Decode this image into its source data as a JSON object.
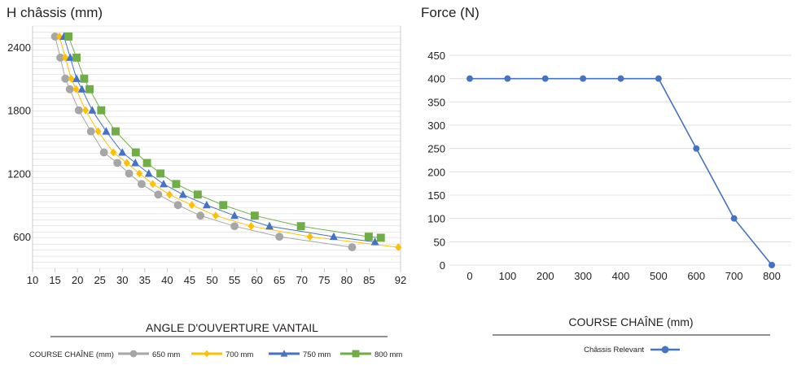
{
  "chart_data": [
    {
      "type": "scatter",
      "title": "H châssis (mm)",
      "xlabel": "ANGLE D'OUVERTURE VANTAIL",
      "ylabel": "",
      "xlim": [
        10,
        92
      ],
      "ylim": [
        300,
        2600
      ],
      "x_ticks": [
        "10",
        "15",
        "20",
        "25",
        "30",
        "35",
        "40",
        "45",
        "50",
        "55",
        "60",
        "65",
        "70",
        "75",
        "80",
        "85",
        "92"
      ],
      "y_ticks": [
        "2400",
        "1800",
        "1200",
        "600"
      ],
      "grid": true,
      "legend_title": "COURSE CHAÎNE (mm)",
      "legend_position": "bottom",
      "series": [
        {
          "name": "650 mm",
          "color": "#a6a6a6",
          "marker": "circle",
          "points": [
            [
              15.0,
              2500
            ],
            [
              16.2,
              2300
            ],
            [
              17.3,
              2100
            ],
            [
              18.3,
              2000
            ],
            [
              20.3,
              1800
            ],
            [
              23.0,
              1600
            ],
            [
              25.9,
              1400
            ],
            [
              28.9,
              1300
            ],
            [
              31.5,
              1200
            ],
            [
              34.3,
              1100
            ],
            [
              38.0,
              1000
            ],
            [
              42.4,
              900
            ],
            [
              47.4,
              800
            ],
            [
              55.0,
              700
            ],
            [
              65.0,
              600
            ],
            [
              81.2,
              500
            ]
          ]
        },
        {
          "name": "700 mm",
          "color": "#ffc000",
          "marker": "diamond",
          "points": [
            [
              16.0,
              2500
            ],
            [
              17.3,
              2300
            ],
            [
              18.6,
              2100
            ],
            [
              19.7,
              2000
            ],
            [
              21.8,
              1800
            ],
            [
              24.6,
              1600
            ],
            [
              28.0,
              1400
            ],
            [
              31.0,
              1300
            ],
            [
              33.8,
              1200
            ],
            [
              36.8,
              1100
            ],
            [
              40.5,
              1000
            ],
            [
              45.5,
              900
            ],
            [
              50.8,
              800
            ],
            [
              58.7,
              700
            ],
            [
              71.8,
              600
            ],
            [
              91.5,
              500
            ]
          ]
        },
        {
          "name": "750 mm",
          "color": "#4472c4",
          "marker": "triangle",
          "points": [
            [
              17.0,
              2500
            ],
            [
              18.4,
              2300
            ],
            [
              19.8,
              2100
            ],
            [
              21.0,
              2000
            ],
            [
              23.3,
              1800
            ],
            [
              26.4,
              1600
            ],
            [
              30.0,
              1400
            ],
            [
              32.9,
              1300
            ],
            [
              35.9,
              1200
            ],
            [
              39.2,
              1100
            ],
            [
              43.5,
              1000
            ],
            [
              48.8,
              900
            ],
            [
              55.0,
              800
            ],
            [
              62.8,
              700
            ],
            [
              77.1,
              600
            ],
            [
              86.3,
              550
            ]
          ]
        },
        {
          "name": "800 mm",
          "color": "#70ad47",
          "marker": "square",
          "points": [
            [
              18.0,
              2500
            ],
            [
              19.8,
              2300
            ],
            [
              21.5,
              2100
            ],
            [
              22.7,
              2000
            ],
            [
              25.3,
              1800
            ],
            [
              28.5,
              1600
            ],
            [
              33.0,
              1400
            ],
            [
              35.5,
              1300
            ],
            [
              38.5,
              1200
            ],
            [
              42.0,
              1100
            ],
            [
              46.8,
              1000
            ],
            [
              52.5,
              900
            ],
            [
              59.5,
              800
            ],
            [
              69.8,
              700
            ],
            [
              84.9,
              600
            ],
            [
              87.6,
              590
            ]
          ]
        }
      ]
    },
    {
      "type": "line",
      "title": "Force (N)",
      "xlabel": "COURSE CHAÎNE (mm)",
      "ylabel": "",
      "xlim": [
        0,
        800
      ],
      "ylim": [
        0,
        450
      ],
      "x_ticks": [
        "0",
        "100",
        "200",
        "300",
        "400",
        "500",
        "600",
        "700",
        "800"
      ],
      "y_ticks": [
        "450",
        "400",
        "350",
        "300",
        "250",
        "200",
        "150",
        "100",
        "50",
        "0"
      ],
      "grid": true,
      "legend_position": "bottom",
      "series": [
        {
          "name": "Châssis Relevant",
          "color": "#4472c4",
          "marker": "circle",
          "x": [
            0,
            100,
            200,
            300,
            400,
            500,
            600,
            700,
            800
          ],
          "values": [
            400,
            400,
            400,
            400,
            400,
            400,
            250,
            100,
            0
          ]
        }
      ]
    }
  ]
}
